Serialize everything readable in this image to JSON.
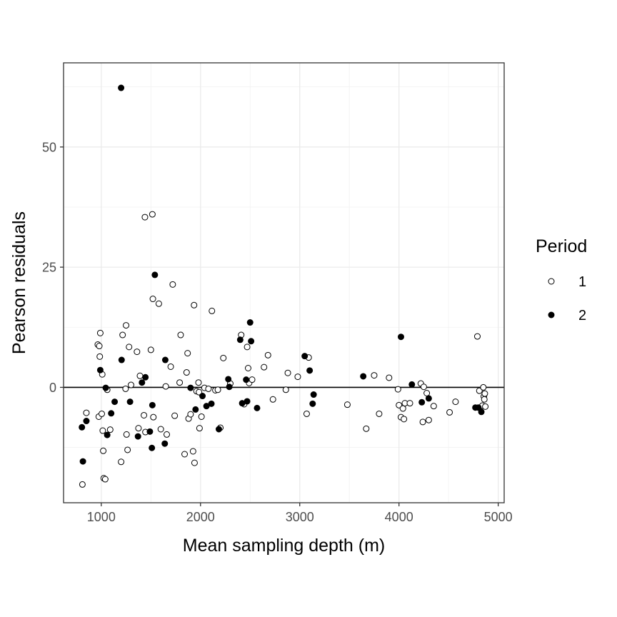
{
  "chart_data": {
    "type": "scatter",
    "title": "",
    "xlabel": "Mean sampling depth (m)",
    "ylabel": "Pearson residuals",
    "xlim": [
      620,
      5060
    ],
    "ylim": [
      -24,
      67.5
    ],
    "x_ticks": [
      1000,
      2000,
      3000,
      4000,
      5000
    ],
    "x_tick_labels": [
      "1000",
      "2000",
      "3000",
      "4000",
      "5000"
    ],
    "y_ticks": [
      0,
      25,
      50
    ],
    "y_tick_labels": [
      "0",
      "25",
      "50"
    ],
    "y_minor": [
      -12.5,
      12.5,
      37.5,
      62.5
    ],
    "reference_line_y": 0,
    "grid": true,
    "legend": {
      "title": "Period",
      "placement": "right",
      "entries": [
        {
          "label": "1",
          "marker": "open-circle"
        },
        {
          "label": "2",
          "marker": "filled-circle"
        }
      ]
    },
    "series": [
      {
        "name": "1",
        "marker": "open-circle",
        "points": [
          [
            810,
            -20.2
          ],
          [
            850,
            -5.3
          ],
          [
            965,
            8.9
          ],
          [
            975,
            -6.1
          ],
          [
            980,
            8.6
          ],
          [
            985,
            6.4
          ],
          [
            990,
            11.3
          ],
          [
            1005,
            -5.5
          ],
          [
            1010,
            2.7
          ],
          [
            1015,
            -9.0
          ],
          [
            1020,
            -13.2
          ],
          [
            1025,
            -18.9
          ],
          [
            1040,
            -19.1
          ],
          [
            1060,
            -0.5
          ],
          [
            1090,
            -8.8
          ],
          [
            1200,
            -15.5
          ],
          [
            1215,
            10.9
          ],
          [
            1245,
            -0.3
          ],
          [
            1250,
            12.9
          ],
          [
            1255,
            -9.8
          ],
          [
            1265,
            -13.0
          ],
          [
            1280,
            8.4
          ],
          [
            1300,
            0.5
          ],
          [
            1360,
            7.4
          ],
          [
            1375,
            -8.5
          ],
          [
            1390,
            2.4
          ],
          [
            1430,
            -5.8
          ],
          [
            1440,
            35.4
          ],
          [
            1445,
            -9.3
          ],
          [
            1500,
            7.8
          ],
          [
            1515,
            36.0
          ],
          [
            1520,
            18.4
          ],
          [
            1525,
            -6.2
          ],
          [
            1580,
            17.4
          ],
          [
            1600,
            -8.7
          ],
          [
            1650,
            0.2
          ],
          [
            1660,
            -9.8
          ],
          [
            1700,
            4.3
          ],
          [
            1720,
            21.4
          ],
          [
            1740,
            -5.9
          ],
          [
            1790,
            1.0
          ],
          [
            1800,
            10.9
          ],
          [
            1840,
            -13.9
          ],
          [
            1860,
            3.1
          ],
          [
            1870,
            7.1
          ],
          [
            1880,
            -6.5
          ],
          [
            1900,
            -5.6
          ],
          [
            1925,
            -13.3
          ],
          [
            1935,
            17.1
          ],
          [
            1940,
            -15.7
          ],
          [
            1960,
            -0.8
          ],
          [
            1980,
            1.0
          ],
          [
            1985,
            -1.0
          ],
          [
            1990,
            -8.5
          ],
          [
            2010,
            -6.1
          ],
          [
            2040,
            -0.1
          ],
          [
            2080,
            -0.3
          ],
          [
            2115,
            15.9
          ],
          [
            2150,
            -0.6
          ],
          [
            2175,
            -0.5
          ],
          [
            2200,
            -8.4
          ],
          [
            2230,
            6.1
          ],
          [
            2300,
            0.8
          ],
          [
            2410,
            10.9
          ],
          [
            2440,
            -3.5
          ],
          [
            2470,
            8.4
          ],
          [
            2480,
            4.0
          ],
          [
            2490,
            0.9
          ],
          [
            2520,
            1.6
          ],
          [
            2640,
            4.2
          ],
          [
            2680,
            6.7
          ],
          [
            2730,
            -2.5
          ],
          [
            2860,
            -0.5
          ],
          [
            2880,
            3.0
          ],
          [
            2980,
            2.2
          ],
          [
            3070,
            -5.5
          ],
          [
            3090,
            6.2
          ],
          [
            3480,
            -3.6
          ],
          [
            3670,
            -8.6
          ],
          [
            3750,
            2.5
          ],
          [
            3800,
            -5.5
          ],
          [
            3900,
            2.0
          ],
          [
            3990,
            -0.4
          ],
          [
            4000,
            -3.7
          ],
          [
            4020,
            -6.2
          ],
          [
            4040,
            -4.4
          ],
          [
            4050,
            -6.6
          ],
          [
            4060,
            -3.3
          ],
          [
            4110,
            -3.3
          ],
          [
            4220,
            0.8
          ],
          [
            4240,
            -7.2
          ],
          [
            4250,
            0.1
          ],
          [
            4280,
            -1.2
          ],
          [
            4300,
            -6.8
          ],
          [
            4350,
            -3.9
          ],
          [
            4510,
            -5.2
          ],
          [
            4570,
            -3.0
          ],
          [
            4790,
            10.6
          ],
          [
            4810,
            -0.7
          ],
          [
            4840,
            -3.8
          ],
          [
            4850,
            0.0
          ],
          [
            4855,
            -1.9
          ],
          [
            4860,
            -2.5
          ],
          [
            4865,
            -1.3
          ],
          [
            4870,
            -4.0
          ]
        ]
      },
      {
        "name": "2",
        "marker": "filled-circle",
        "points": [
          [
            805,
            -8.3
          ],
          [
            815,
            -15.4
          ],
          [
            850,
            -7.0
          ],
          [
            990,
            3.6
          ],
          [
            1045,
            -0.1
          ],
          [
            1060,
            -9.9
          ],
          [
            1100,
            -5.4
          ],
          [
            1135,
            -3.0
          ],
          [
            1200,
            62.3
          ],
          [
            1205,
            5.7
          ],
          [
            1290,
            -3.0
          ],
          [
            1370,
            -10.2
          ],
          [
            1410,
            1.0
          ],
          [
            1445,
            2.1
          ],
          [
            1490,
            -9.2
          ],
          [
            1510,
            -12.6
          ],
          [
            1515,
            -3.7
          ],
          [
            1540,
            23.4
          ],
          [
            1640,
            -11.7
          ],
          [
            1645,
            5.7
          ],
          [
            1900,
            -0.1
          ],
          [
            1950,
            -4.6
          ],
          [
            2020,
            -1.8
          ],
          [
            2060,
            -3.9
          ],
          [
            2110,
            -3.4
          ],
          [
            2185,
            -8.7
          ],
          [
            2280,
            1.7
          ],
          [
            2290,
            0.1
          ],
          [
            2400,
            9.9
          ],
          [
            2420,
            -3.3
          ],
          [
            2460,
            1.6
          ],
          [
            2470,
            -2.9
          ],
          [
            2500,
            13.5
          ],
          [
            2510,
            9.6
          ],
          [
            2570,
            -4.3
          ],
          [
            3050,
            6.5
          ],
          [
            3100,
            3.5
          ],
          [
            3130,
            -3.4
          ],
          [
            3140,
            -1.5
          ],
          [
            3640,
            2.3
          ],
          [
            4020,
            10.5
          ],
          [
            4130,
            0.6
          ],
          [
            4230,
            -3.1
          ],
          [
            4300,
            -2.3
          ],
          [
            4770,
            -4.2
          ],
          [
            4800,
            -4.2
          ],
          [
            4830,
            -5.1
          ]
        ]
      }
    ]
  }
}
